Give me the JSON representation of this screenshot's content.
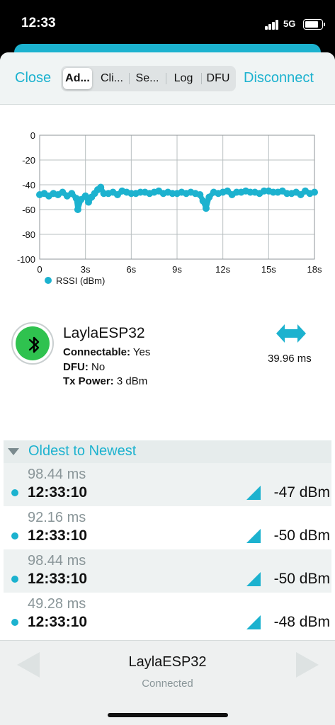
{
  "status_bar": {
    "time": "12:33",
    "network": "5G",
    "battery_percent": 80
  },
  "nav": {
    "close_label": "Close",
    "disconnect_label": "Disconnect",
    "tabs": [
      {
        "label": "Ad...",
        "active": true
      },
      {
        "label": "Cli...",
        "active": false
      },
      {
        "label": "Se...",
        "active": false
      },
      {
        "label": "Log",
        "active": false
      },
      {
        "label": "DFU",
        "active": false
      }
    ]
  },
  "chart_data": {
    "type": "scatter",
    "title": "",
    "xlabel": "",
    "ylabel": "",
    "xlim": [
      0,
      18
    ],
    "ylim": [
      -100,
      0
    ],
    "x_ticks": [
      "0",
      "3s",
      "6s",
      "9s",
      "12s",
      "15s",
      "18s"
    ],
    "y_ticks": [
      "0",
      "-20",
      "-40",
      "-60",
      "-80",
      "-100"
    ],
    "grid": true,
    "legend_position": "bottom-left",
    "color": "#1cb2cf",
    "series": [
      {
        "name": "RSSI (dBm)",
        "x": [
          0.0,
          0.3,
          0.6,
          0.9,
          1.2,
          1.5,
          1.8,
          2.1,
          2.4,
          2.5,
          2.7,
          3.0,
          3.2,
          3.4,
          3.6,
          3.8,
          4.0,
          4.2,
          4.5,
          4.8,
          5.1,
          5.4,
          5.7,
          6.0,
          6.3,
          6.6,
          6.9,
          7.2,
          7.5,
          7.8,
          8.1,
          8.4,
          8.7,
          9.0,
          9.3,
          9.6,
          9.9,
          10.2,
          10.5,
          10.7,
          10.9,
          11.1,
          11.4,
          11.7,
          12.0,
          12.3,
          12.6,
          12.9,
          13.2,
          13.5,
          13.8,
          14.1,
          14.4,
          14.7,
          15.0,
          15.3,
          15.6,
          15.9,
          16.2,
          16.5,
          16.8,
          17.1,
          17.4,
          17.7,
          18.0
        ],
        "y": [
          -48,
          -47,
          -49,
          -47,
          -48,
          -46,
          -49,
          -47,
          -51,
          -60,
          -52,
          -49,
          -54,
          -50,
          -47,
          -44,
          -42,
          -47,
          -47,
          -46,
          -48,
          -45,
          -46,
          -47,
          -47,
          -46,
          -46,
          -47,
          -46,
          -45,
          -47,
          -46,
          -47,
          -47,
          -46,
          -47,
          -46,
          -47,
          -48,
          -53,
          -59,
          -50,
          -46,
          -47,
          -46,
          -45,
          -48,
          -46,
          -46,
          -45,
          -46,
          -46,
          -47,
          -45,
          -45,
          -46,
          -46,
          -45,
          -47,
          -47,
          -46,
          -48,
          -45,
          -47,
          -46
        ]
      }
    ]
  },
  "device": {
    "name": "LaylaESP32",
    "connectable_label": "Connectable:",
    "connectable_value": "Yes",
    "dfu_label": "DFU:",
    "dfu_value": "No",
    "tx_power_label": "Tx Power:",
    "tx_power_value": "3 dBm",
    "interval": "39.96 ms",
    "icon": "bluetooth-icon",
    "interval_icon": "double-arrow-icon"
  },
  "list": {
    "header": "Oldest to Newest",
    "rows": [
      {
        "interval": "98.44 ms",
        "time": "12:33:10",
        "rssi": "-47 dBm"
      },
      {
        "interval": "92.16 ms",
        "time": "12:33:10",
        "rssi": "-50 dBm"
      },
      {
        "interval": "98.44 ms",
        "time": "12:33:10",
        "rssi": "-50 dBm"
      },
      {
        "interval": "49.28 ms",
        "time": "12:33:10",
        "rssi": "-48 dBm"
      }
    ]
  },
  "bottom": {
    "device_name": "LaylaESP32",
    "status": "Connected"
  }
}
